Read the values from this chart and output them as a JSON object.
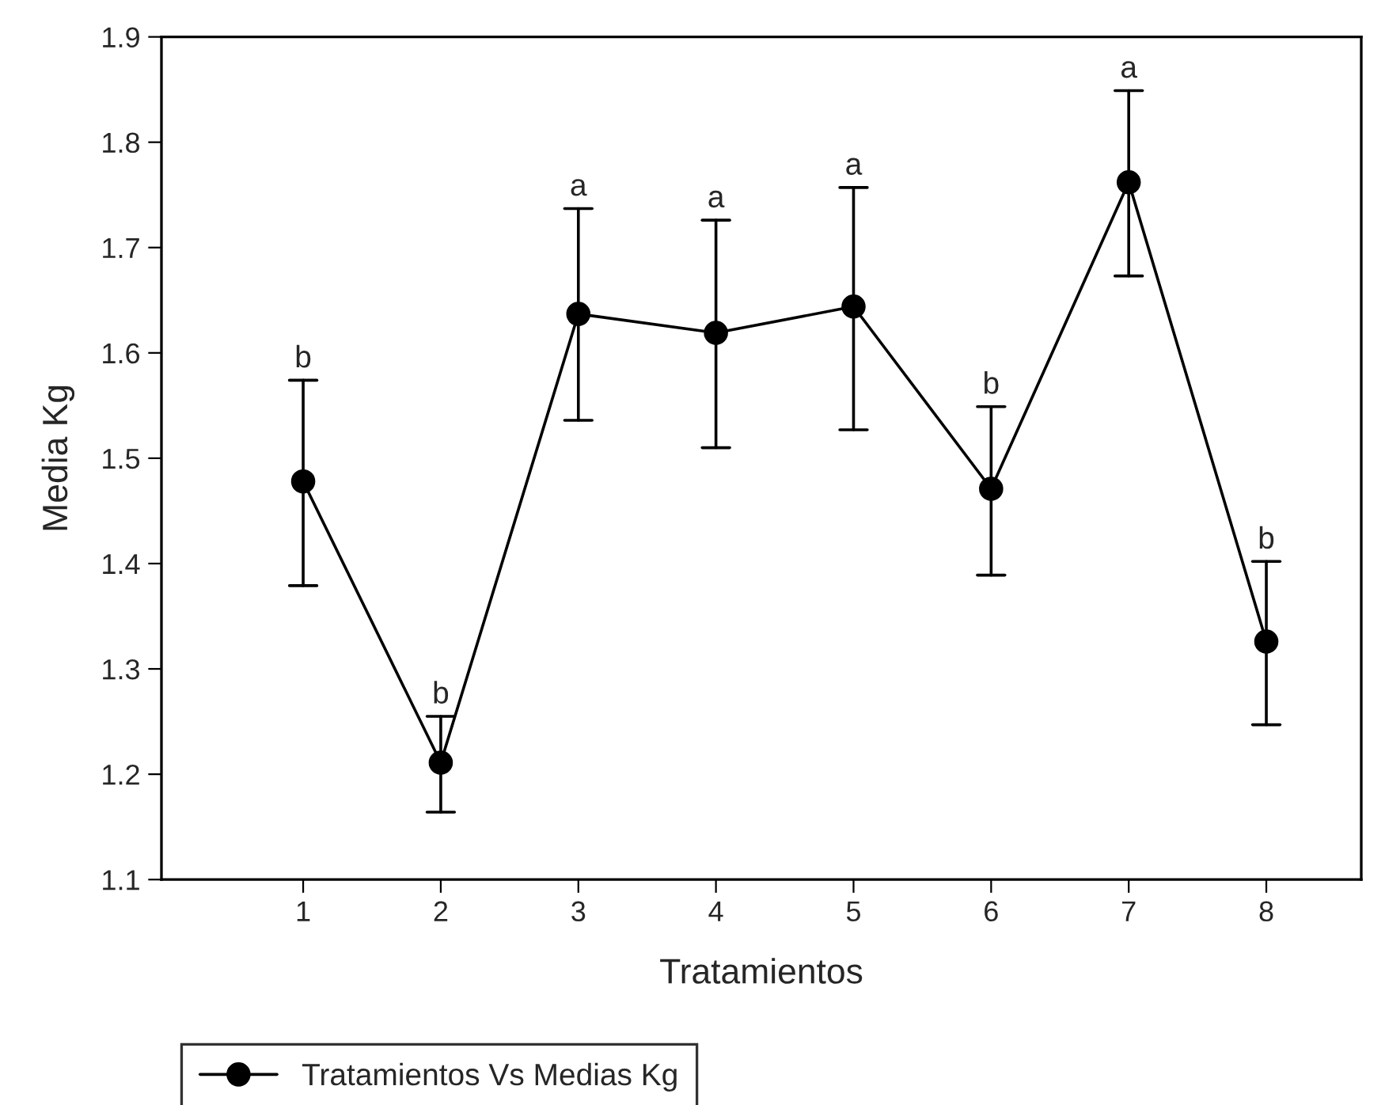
{
  "chart_data": {
    "type": "line",
    "xlabel": "Tratamientos",
    "ylabel": "Media Kg",
    "categories": [
      "1",
      "2",
      "3",
      "4",
      "5",
      "6",
      "7",
      "8"
    ],
    "series": [
      {
        "name": "Tratamientos Vs Medias Kg",
        "color": "#000000",
        "values": [
          1.478,
          1.211,
          1.637,
          1.619,
          1.644,
          1.471,
          1.762,
          1.326
        ],
        "errors": [
          [
            1.379,
            1.574
          ],
          [
            1.164,
            1.255
          ],
          [
            1.536,
            1.737
          ],
          [
            1.51,
            1.726
          ],
          [
            1.527,
            1.757
          ],
          [
            1.389,
            1.549
          ],
          [
            1.673,
            1.849
          ],
          [
            1.247,
            1.402
          ]
        ]
      }
    ],
    "ylim": [
      1.1,
      1.9
    ],
    "yticks": [
      {
        "value": 1.1,
        "label": "1.1"
      },
      {
        "value": 1.2,
        "label": "1.2"
      },
      {
        "value": 1.3,
        "label": "1.3"
      },
      {
        "value": 1.4,
        "label": "1.4"
      },
      {
        "value": 1.5,
        "label": "1.5"
      },
      {
        "value": 1.6,
        "label": "1.6"
      },
      {
        "value": 1.7,
        "label": "1.7"
      },
      {
        "value": 1.8,
        "label": "1.8"
      },
      {
        "value": 1.9,
        "label": "1.9"
      }
    ],
    "marker": "circle",
    "line_style": "solid",
    "grid": false,
    "legend": "bottom left",
    "annotations": [
      {
        "text": "b",
        "x": "1",
        "y": 1.574
      },
      {
        "text": "b",
        "x": "2",
        "y": 1.255
      },
      {
        "text": "a",
        "x": "3",
        "y": 1.737
      },
      {
        "text": "a",
        "x": "4",
        "y": 1.726
      },
      {
        "text": "a",
        "x": "5",
        "y": 1.757
      },
      {
        "text": "b",
        "x": "6",
        "y": 1.549
      },
      {
        "text": "a",
        "x": "7",
        "y": 1.849
      },
      {
        "text": "b",
        "x": "8",
        "y": 1.402
      }
    ]
  }
}
